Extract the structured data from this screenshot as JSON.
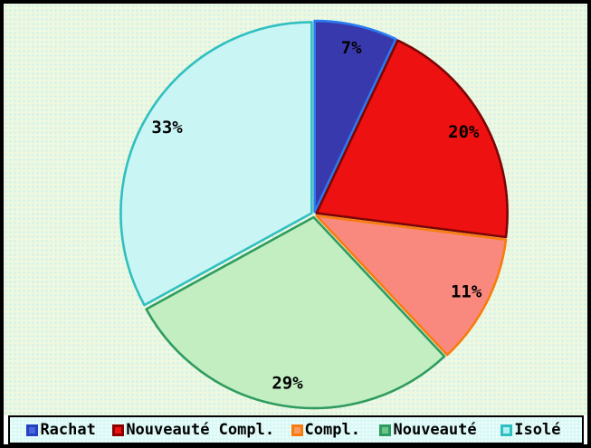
{
  "chart_data": {
    "type": "pie",
    "title": "",
    "unit": "%",
    "direction": "clockwise",
    "start_angle_deg": 0,
    "legend_position": "bottom",
    "categories": [
      "Rachat",
      "Nouveauté Compl.",
      "Compl.",
      "Nouveauté",
      "Isolé"
    ],
    "values": [
      7,
      20,
      11,
      29,
      33
    ],
    "labels": [
      "7%",
      "20%",
      "11%",
      "29%",
      "33%"
    ],
    "slice_styles": [
      {
        "fill": "#3939ae",
        "border": "#2b7bf0",
        "marker_fill": "#4666df",
        "marker_border": "#2540c0"
      },
      {
        "fill": "#ee1111",
        "border": "#7c0404",
        "marker_fill": "#ee1111",
        "marker_border": "#8b0000"
      },
      {
        "fill": "#f9897e",
        "border": "#f87c0c",
        "marker_fill": "#fa9a60",
        "marker_border": "#f87c0c"
      },
      {
        "fill": "#c2eec2",
        "border": "#2f9c5f",
        "marker_fill": "#6cc488",
        "marker_border": "#2f9c5f"
      },
      {
        "fill": "#c9f5f4",
        "border": "#30bfc0",
        "marker_fill": "#aff0f0",
        "marker_border": "#30bfc0"
      }
    ]
  },
  "colors": {
    "frame_border": "#000000",
    "plot_background": "#eef8e0",
    "plot_dot_pattern": "#c7efee",
    "legend_background": "#d9f8f6",
    "legend_border": "#000000",
    "label_text": "#000000"
  }
}
